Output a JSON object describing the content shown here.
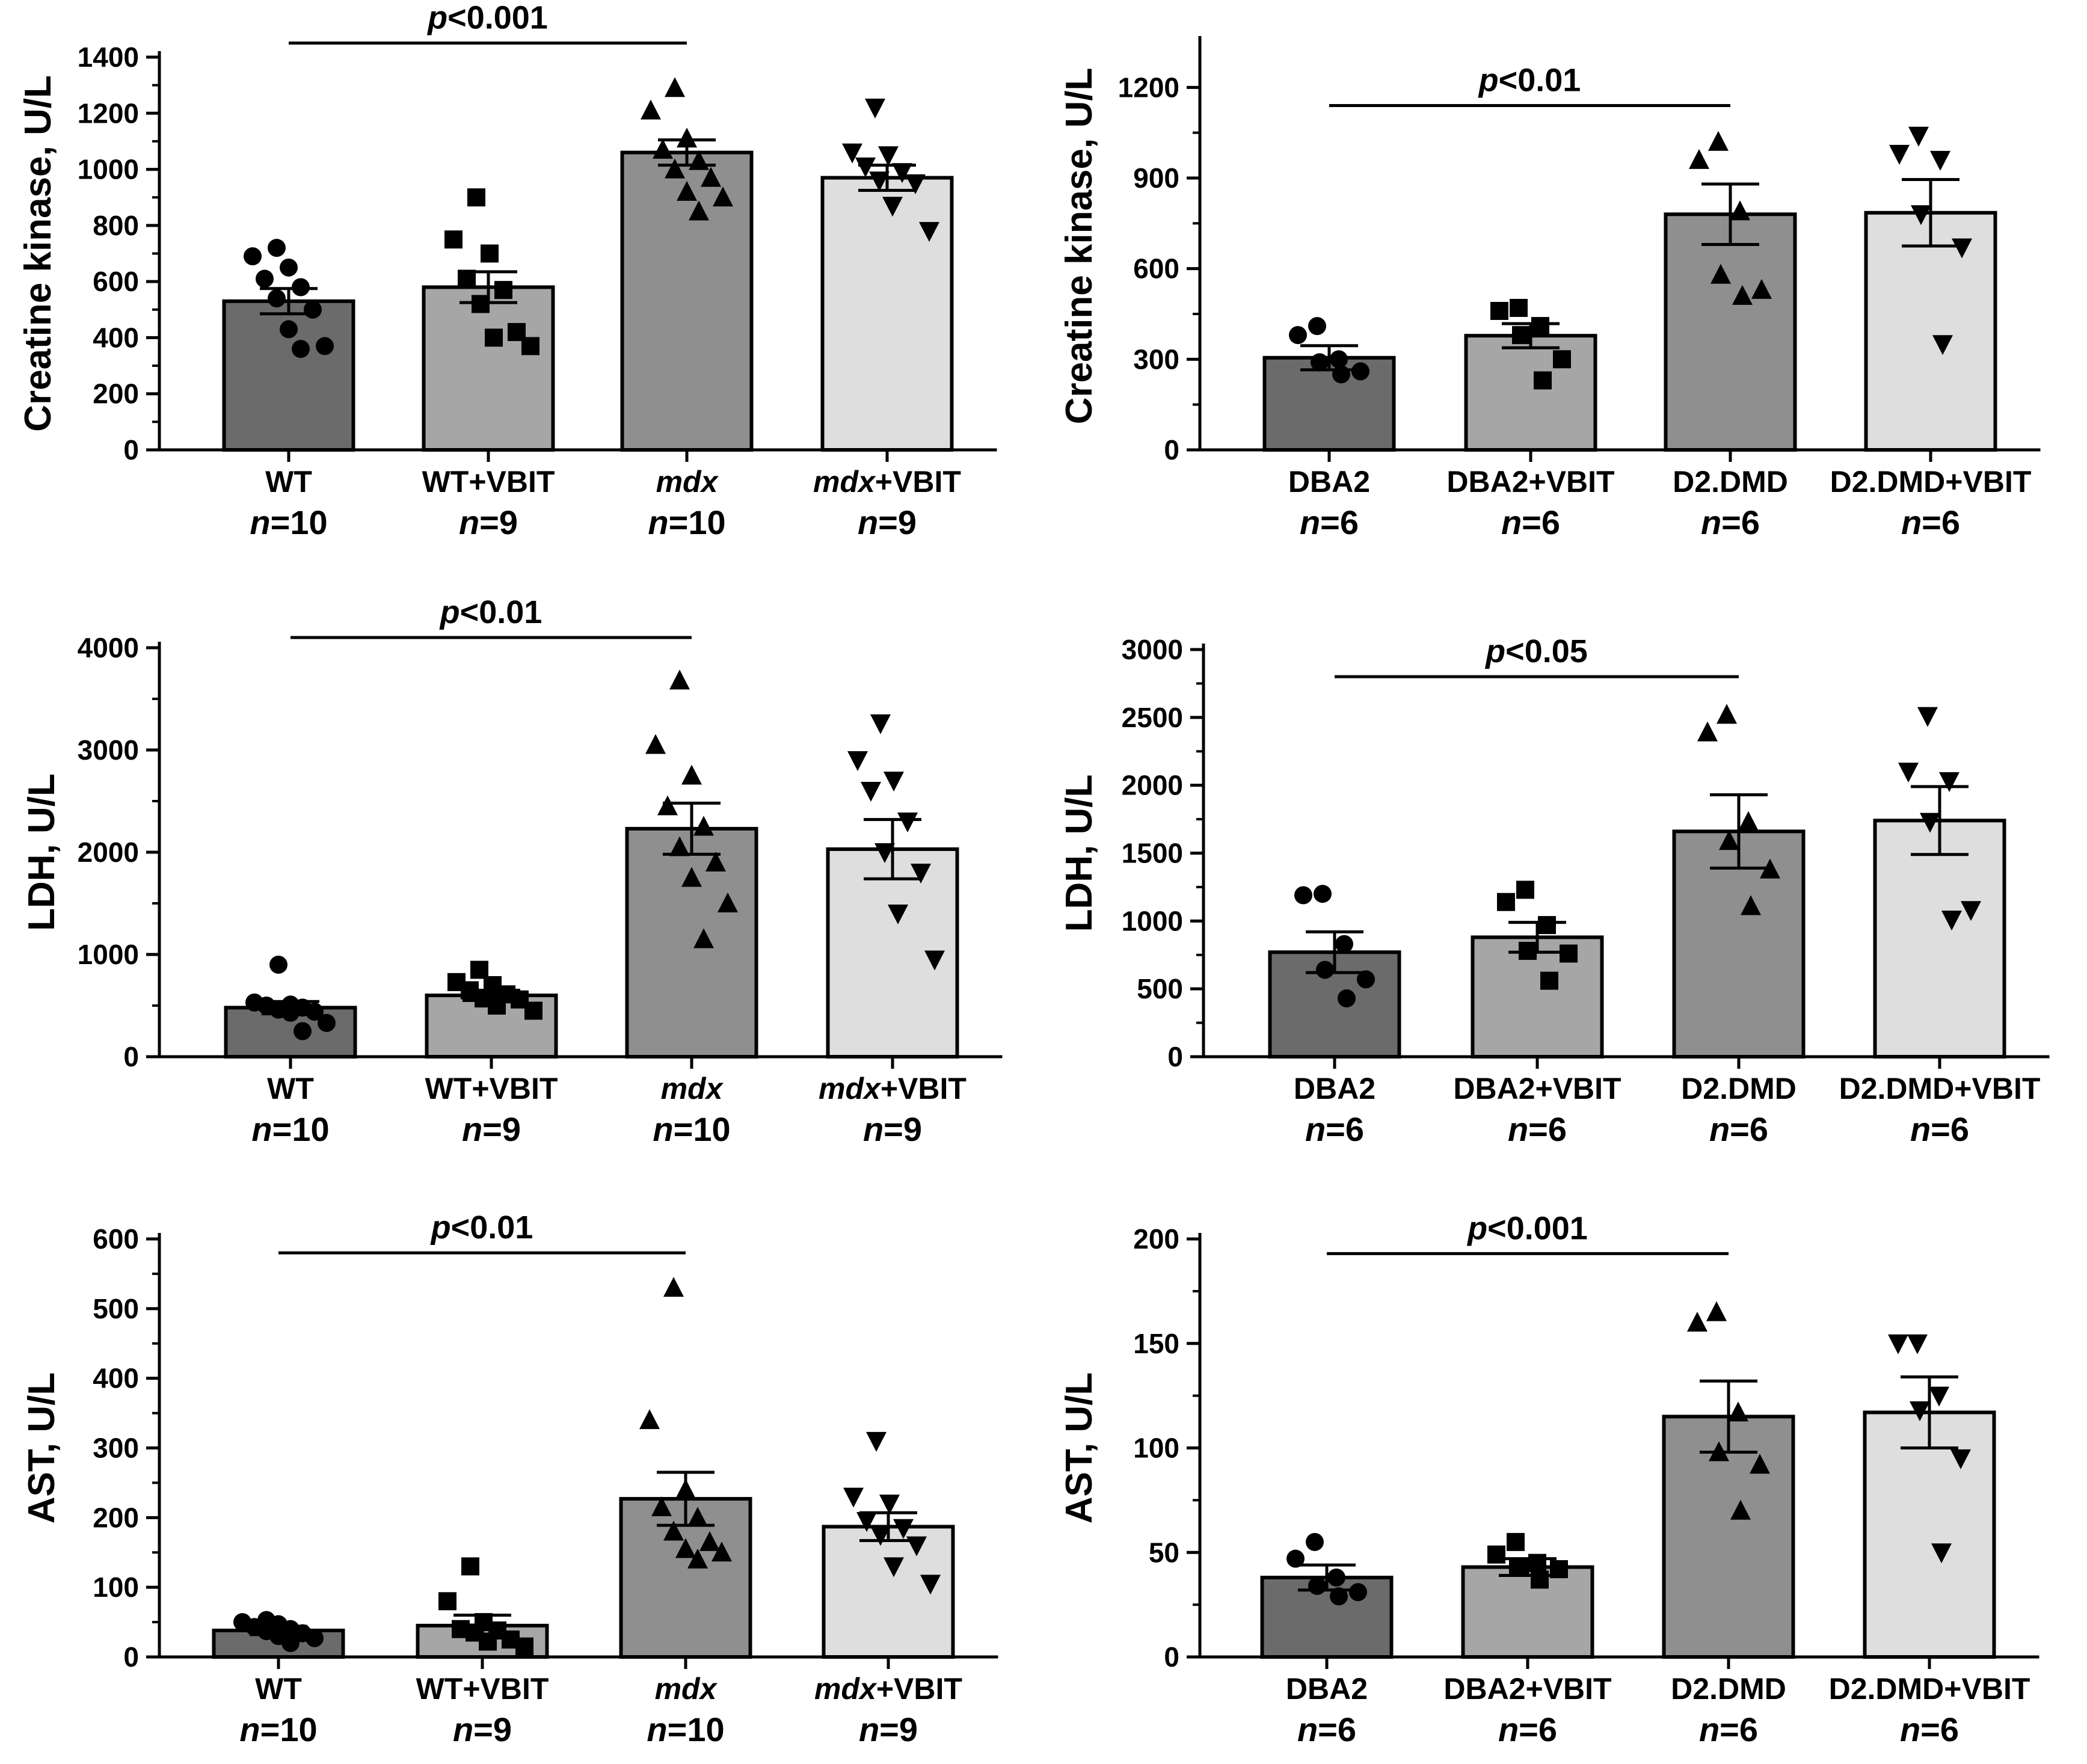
{
  "chart_data": [
    {
      "id": "ck-mdx",
      "type": "bar",
      "ylabel": "Creatine kinase, U/L",
      "ylim": [
        0,
        1400
      ],
      "yticks": [
        0,
        200,
        400,
        600,
        800,
        1000,
        1200,
        1400
      ],
      "categories": [
        "WT",
        "WT+VBIT",
        "mdx",
        "mdx+VBIT"
      ],
      "category_prefix": [
        "",
        "",
        "",
        "mdx"
      ],
      "category_suffix": [
        "WT",
        "WT+VBIT",
        "",
        "+VBIT"
      ],
      "category_italic": [
        false,
        false,
        true,
        false
      ],
      "n": [
        "10",
        "9",
        "10",
        "9"
      ],
      "values": [
        530,
        580,
        1060,
        970
      ],
      "sem": [
        45,
        55,
        45,
        45
      ],
      "colors": [
        "#6b6b6b",
        "#a6a6a6",
        "#8f8f8f",
        "#dedede"
      ],
      "markers": [
        "circle",
        "square",
        "triangle-up",
        "triangle-down"
      ],
      "points": [
        [
          720,
          690,
          650,
          610,
          580,
          540,
          500,
          430,
          370,
          360
        ],
        [
          900,
          750,
          700,
          610,
          570,
          520,
          420,
          400,
          370
        ],
        [
          1290,
          1210,
          1110,
          1070,
          1030,
          1000,
          970,
          920,
          900,
          850
        ],
        [
          1220,
          1060,
          1050,
          1010,
          990,
          960,
          950,
          870,
          780
        ]
      ],
      "significance": {
        "label": "p<0.001",
        "from": 0,
        "to": 2,
        "y": 1450
      }
    },
    {
      "id": "ck-d2",
      "type": "bar",
      "ylabel": "Creatine kinase, U/L",
      "ylim": [
        0,
        1350
      ],
      "yticks": [
        0,
        300,
        600,
        900,
        1200
      ],
      "categories": [
        "DBA2",
        "DBA2+VBIT",
        "D2.DMD",
        "D2.DMD+VBIT"
      ],
      "category_prefix": [
        "",
        "",
        "",
        ""
      ],
      "category_suffix": [
        "DBA2",
        "DBA2+VBIT",
        "D2.DMD",
        "D2.DMD+VBIT"
      ],
      "category_italic": [
        false,
        false,
        false,
        false
      ],
      "n": [
        "6",
        "6",
        "6",
        "6"
      ],
      "values": [
        305,
        378,
        780,
        785
      ],
      "sem": [
        40,
        40,
        100,
        110
      ],
      "colors": [
        "#6b6b6b",
        "#a6a6a6",
        "#8f8f8f",
        "#dedede"
      ],
      "markers": [
        "circle",
        "square",
        "triangle-up",
        "triangle-down"
      ],
      "points": [
        [
          410,
          380,
          300,
          290,
          260,
          250
        ],
        [
          470,
          460,
          410,
          380,
          300,
          230
        ],
        [
          1020,
          960,
          790,
          580,
          530,
          510
        ],
        [
          1040,
          980,
          960,
          780,
          670,
          350
        ]
      ],
      "significance": {
        "label": "p<0.01",
        "from": 0,
        "to": 2,
        "y": 1140
      }
    },
    {
      "id": "ldh-mdx",
      "type": "bar",
      "ylabel": "LDH, U/L",
      "ylim": [
        0,
        4000
      ],
      "yticks": [
        0,
        1000,
        2000,
        3000,
        4000
      ],
      "categories": [
        "WT",
        "WT+VBIT",
        "mdx",
        "mdx+VBIT"
      ],
      "category_prefix": [
        "",
        "",
        "",
        "mdx"
      ],
      "category_suffix": [
        "WT",
        "WT+VBIT",
        "",
        "+VBIT"
      ],
      "category_italic": [
        false,
        false,
        true,
        false
      ],
      "n": [
        "10",
        "9",
        "10",
        "9"
      ],
      "values": [
        480,
        600,
        2230,
        2030
      ],
      "sem": [
        60,
        50,
        250,
        290
      ],
      "colors": [
        "#6b6b6b",
        "#a6a6a6",
        "#8f8f8f",
        "#dedede"
      ],
      "markers": [
        "circle",
        "square",
        "triangle-up",
        "triangle-down"
      ],
      "points": [
        [
          900,
          530,
          510,
          500,
          480,
          460,
          440,
          430,
          330,
          250
        ],
        [
          850,
          730,
          700,
          650,
          610,
          570,
          560,
          500,
          450
        ],
        [
          3680,
          3050,
          2750,
          2450,
          2250,
          2050,
          1900,
          1750,
          1500,
          1150
        ],
        [
          3260,
          2900,
          2700,
          2600,
          2300,
          2000,
          1800,
          1400,
          950
        ]
      ],
      "significance": {
        "label": "p<0.01",
        "from": 0,
        "to": 2,
        "y": 4100
      }
    },
    {
      "id": "ldh-d2",
      "type": "bar",
      "ylabel": "LDH, U/L",
      "ylim": [
        0,
        3000
      ],
      "yticks": [
        0,
        500,
        1000,
        1500,
        2000,
        2500,
        3000
      ],
      "categories": [
        "DBA2",
        "DBA2+VBIT",
        "D2.DMD",
        "D2.DMD+VBIT"
      ],
      "category_prefix": [
        "",
        "",
        "",
        ""
      ],
      "category_suffix": [
        "DBA2",
        "DBA2+VBIT",
        "D2.DMD",
        "D2.DMD+VBIT"
      ],
      "category_italic": [
        false,
        false,
        false,
        false
      ],
      "n": [
        "6",
        "6",
        "6",
        "6"
      ],
      "values": [
        770,
        880,
        1660,
        1740
      ],
      "sem": [
        150,
        110,
        270,
        250
      ],
      "colors": [
        "#6b6b6b",
        "#a6a6a6",
        "#8f8f8f",
        "#dedede"
      ],
      "markers": [
        "circle",
        "square",
        "triangle-up",
        "triangle-down"
      ],
      "points": [
        [
          1200,
          1190,
          830,
          640,
          570,
          430
        ],
        [
          1230,
          1140,
          970,
          780,
          760,
          560
        ],
        [
          2520,
          2390,
          1730,
          1590,
          1380,
          1110
        ],
        [
          2510,
          2100,
          2030,
          1730,
          1080,
          1010
        ]
      ],
      "significance": {
        "label": "p<0.05",
        "from": 0,
        "to": 2,
        "y": 2800
      }
    },
    {
      "id": "ast-mdx",
      "type": "bar",
      "ylabel": "AST, U/L",
      "ylim": [
        0,
        600
      ],
      "yticks": [
        0,
        100,
        200,
        300,
        400,
        500,
        600
      ],
      "categories": [
        "WT",
        "WT+VBIT",
        "mdx",
        "mdx+VBIT"
      ],
      "category_prefix": [
        "",
        "",
        "",
        "mdx"
      ],
      "category_suffix": [
        "WT",
        "WT+VBIT",
        "",
        "+VBIT"
      ],
      "category_italic": [
        false,
        false,
        true,
        false
      ],
      "n": [
        "10",
        "9",
        "10",
        "9"
      ],
      "values": [
        38,
        45,
        227,
        187
      ],
      "sem": [
        6,
        15,
        38,
        20
      ],
      "colors": [
        "#6b6b6b",
        "#a6a6a6",
        "#8f8f8f",
        "#dedede"
      ],
      "markers": [
        "circle",
        "square",
        "triangle-up",
        "triangle-down"
      ],
      "points": [
        [
          53,
          50,
          47,
          43,
          40,
          37,
          34,
          30,
          27,
          20
        ],
        [
          130,
          80,
          50,
          40,
          38,
          35,
          25,
          22,
          15
        ],
        [
          530,
          340,
          240,
          215,
          200,
          180,
          165,
          155,
          150,
          140
        ],
        [
          310,
          230,
          220,
          195,
          185,
          175,
          160,
          130,
          105
        ]
      ],
      "significance": {
        "label": "p<0.01",
        "from": 0,
        "to": 2,
        "y": 580
      }
    },
    {
      "id": "ast-d2",
      "type": "bar",
      "ylabel": "AST, U/L",
      "ylim": [
        0,
        200
      ],
      "yticks": [
        0,
        50,
        100,
        150,
        200
      ],
      "categories": [
        "DBA2",
        "DBA2+VBIT",
        "D2.DMD",
        "D2.DMD+VBIT"
      ],
      "category_prefix": [
        "",
        "",
        "",
        ""
      ],
      "category_suffix": [
        "DBA2",
        "DBA2+VBIT",
        "D2.DMD",
        "D2.DMD+VBIT"
      ],
      "category_italic": [
        false,
        false,
        false,
        false
      ],
      "n": [
        "6",
        "6",
        "6",
        "6"
      ],
      "values": [
        38,
        43,
        115,
        117
      ],
      "sem": [
        6,
        4,
        17,
        17
      ],
      "colors": [
        "#6b6b6b",
        "#a6a6a6",
        "#8f8f8f",
        "#dedede"
      ],
      "markers": [
        "circle",
        "square",
        "triangle-up",
        "triangle-down"
      ],
      "points": [
        [
          55,
          47,
          38,
          34,
          31,
          29
        ],
        [
          55,
          49,
          45,
          43,
          42,
          37
        ],
        [
          165,
          160,
          117,
          98,
          92,
          70
        ],
        [
          150,
          150,
          125,
          118,
          95,
          50
        ]
      ],
      "significance": {
        "label": "p<0.001",
        "from": 0,
        "to": 2,
        "y": 193
      }
    }
  ]
}
